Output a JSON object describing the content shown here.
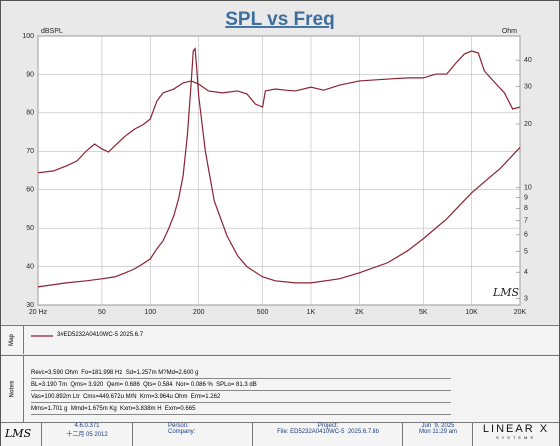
{
  "chart_data": {
    "type": "line",
    "title": "SPL vs Freq",
    "ylabel": "dBSPL",
    "y2label": "Ohm",
    "xlog": true,
    "y2log": true,
    "grid": true,
    "xlim": [
      20,
      20000
    ],
    "xticks": [
      {
        "value": 20,
        "label": "20 Hz"
      },
      50,
      100,
      200,
      500,
      {
        "value": 1000,
        "label": "1K"
      },
      {
        "value": 2000,
        "label": "2K"
      },
      {
        "value": 5000,
        "label": "5K"
      },
      {
        "value": 10000,
        "label": "10K"
      },
      {
        "value": 20000,
        "label": "20K"
      }
    ],
    "ylim": [
      30,
      100
    ],
    "yticks": [
      30,
      40,
      50,
      60,
      70,
      80,
      90,
      100
    ],
    "y2lim": [
      2.8,
      52
    ],
    "y2ticks": [
      3,
      4,
      5,
      6,
      7,
      8,
      9,
      10,
      20,
      30,
      40
    ],
    "series": [
      {
        "name": "3#ED5232A0410WC-5  2025.6.7",
        "color": "#8b2232",
        "x": [
          20,
          25,
          30,
          35,
          40,
          45,
          50,
          55,
          60,
          70,
          80,
          90,
          100,
          110,
          120,
          140,
          160,
          180,
          200,
          230,
          280,
          350,
          400,
          450,
          500,
          520,
          600,
          700,
          800,
          1000,
          1200,
          1500,
          2000,
          3000,
          4000,
          5000,
          6000,
          7000,
          8000,
          9000,
          10000,
          11000,
          12000,
          14000,
          16000,
          18000,
          20000
        ],
        "values": [
          64.4,
          64.9,
          66.2,
          67.5,
          70.1,
          71.9,
          70.6,
          69.8,
          71.4,
          74.0,
          75.8,
          76.9,
          78.4,
          83.1,
          85.2,
          86.2,
          87.8,
          88.3,
          87.5,
          85.7,
          85.2,
          85.7,
          84.9,
          82.3,
          81.5,
          85.7,
          86.2,
          85.9,
          85.7,
          86.7,
          85.9,
          87.2,
          88.3,
          88.8,
          89.1,
          89.1,
          90.1,
          90.1,
          93.0,
          95.3,
          96.1,
          95.6,
          90.9,
          87.8,
          85.2,
          81.0,
          81.5
        ]
      },
      {
        "color": "#8b2232",
        "axis": "y2",
        "x": [
          20,
          30,
          40,
          50,
          60,
          70,
          80,
          90,
          100,
          110,
          120,
          130,
          140,
          150,
          160,
          170,
          180,
          185,
          190,
          195,
          200,
          220,
          250,
          300,
          350,
          400,
          500,
          600,
          800,
          1000,
          1500,
          2000,
          3000,
          4000,
          5000,
          7000,
          10000,
          15000,
          20000
        ],
        "values": [
          3.41,
          3.56,
          3.64,
          3.72,
          3.8,
          3.97,
          4.15,
          4.38,
          4.62,
          5.16,
          5.62,
          6.41,
          7.38,
          8.87,
          11.4,
          17.6,
          31.9,
          44.2,
          45.3,
          35.6,
          27.2,
          14.9,
          8.68,
          5.94,
          4.77,
          4.24,
          3.8,
          3.64,
          3.56,
          3.56,
          3.72,
          3.97,
          4.43,
          5.05,
          5.75,
          7.14,
          9.47,
          12.3,
          15.5
        ]
      }
    ]
  },
  "logo": "LMS",
  "map": {
    "label": "Map"
  },
  "notes": {
    "label": "Notes",
    "lines": [
      "Revc=3.590 Ohm  Fo=181.998 Hz  Sd=1.257m M?Md=2.600 g",
      "BL=3.190 Tm  Qms= 3.920  Qem= 0.686  Qts= 0.584  Nor= 0.086 %  SPLo= 81.3 dB",
      "Vas=100.892m Ltr  Cms=449.672u M/N  Krm=3.964u Ohm  Erm=1.262",
      "Mms=1.701 g  Mmd=1.675m Kg  Kxm=3.838m H  Exm=0.665"
    ]
  },
  "footer": {
    "logo": "LMS",
    "version": "4.6.0.371",
    "build_date": "十二月 05 2012",
    "person": "Person:",
    "company": "Company:",
    "project": "Project:",
    "file": "File: ED5232A0410WC-5  2025.6.7.lib",
    "date": "Jun  9, 2025",
    "time": "Mon 11:29 am",
    "brand": "LINEAR X",
    "brand_sub": "SYSTEMS"
  }
}
